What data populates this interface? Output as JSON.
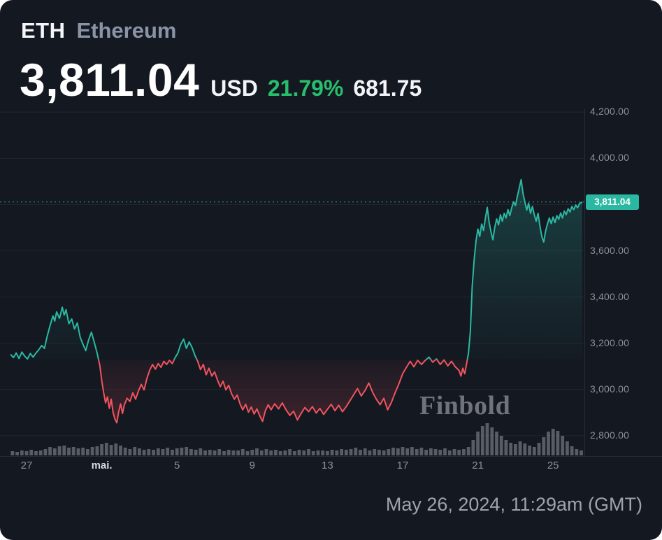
{
  "header": {
    "symbol": "ETH",
    "name": "Ethereum",
    "price": "3,811.04",
    "currency": "USD",
    "change_percent": "21.79%",
    "change_abs": "681.75"
  },
  "watermark": "Finbold",
  "footer": {
    "timestamp": "May 26, 2024, 11:29am (GMT)"
  },
  "colors": {
    "background": "#141821",
    "line_up_teal": "#2bb8a2",
    "line_down_red": "#f1545e",
    "change_green": "#27bf6b",
    "axis_text": "#8b909c",
    "tag_bg": "#2bb8a2",
    "volume_gray": "rgba(170,175,185,0.45)"
  },
  "chart_data": {
    "type": "line",
    "style": "baseline-area-with-volume-histogram",
    "title": "ETH/USD price, Apr 26 - May 26 2024",
    "current_price": 3811.04,
    "current_price_label": "3,811.04",
    "baseline_value": 3129.29,
    "period_change_percent": 21.79,
    "period_change_abs": 681.75,
    "ylim": [
      2712,
      4216
    ],
    "y_axis": {
      "gridlines": [
        4200,
        4000,
        3800,
        3600,
        3400,
        3200,
        3000,
        2800
      ],
      "ticks": [
        {
          "value": 4200,
          "label": "4,200.00"
        },
        {
          "value": 4000,
          "label": "4,000.00"
        },
        {
          "value": 3600,
          "label": "3,600.00"
        },
        {
          "value": 3400,
          "label": "3,400.00"
        },
        {
          "value": 3200,
          "label": "3,200.00"
        },
        {
          "value": 3000,
          "label": "3,000.00"
        },
        {
          "value": 2800,
          "label": "2,800.00"
        }
      ]
    },
    "x_axis": {
      "unit": "days since Apr 27 2024",
      "ticks": [
        {
          "day": 0,
          "label": "27",
          "major": false
        },
        {
          "day": 4,
          "label": "mai.",
          "major": true
        },
        {
          "day": 8,
          "label": "5",
          "major": false
        },
        {
          "day": 12,
          "label": "9",
          "major": false
        },
        {
          "day": 16,
          "label": "13",
          "major": false
        },
        {
          "day": 20,
          "label": "17",
          "major": false
        },
        {
          "day": 24,
          "label": "21",
          "major": false
        },
        {
          "day": 28,
          "label": "25",
          "major": false
        }
      ]
    },
    "prices": [
      [
        -0.85,
        3152
      ],
      [
        -0.7,
        3138
      ],
      [
        -0.55,
        3158
      ],
      [
        -0.4,
        3134
      ],
      [
        -0.25,
        3162
      ],
      [
        -0.1,
        3144
      ],
      [
        0.05,
        3132
      ],
      [
        0.2,
        3156
      ],
      [
        0.35,
        3140
      ],
      [
        0.5,
        3158
      ],
      [
        0.65,
        3172
      ],
      [
        0.8,
        3190
      ],
      [
        0.95,
        3178
      ],
      [
        1.1,
        3232
      ],
      [
        1.25,
        3276
      ],
      [
        1.4,
        3318
      ],
      [
        1.5,
        3296
      ],
      [
        1.6,
        3336
      ],
      [
        1.75,
        3308
      ],
      [
        1.9,
        3356
      ],
      [
        2,
        3322
      ],
      [
        2.1,
        3345
      ],
      [
        2.25,
        3285
      ],
      [
        2.4,
        3305
      ],
      [
        2.55,
        3262
      ],
      [
        2.7,
        3288
      ],
      [
        2.85,
        3226
      ],
      [
        3,
        3196
      ],
      [
        3.15,
        3168
      ],
      [
        3.3,
        3215
      ],
      [
        3.45,
        3248
      ],
      [
        3.6,
        3205
      ],
      [
        3.75,
        3158
      ],
      [
        3.9,
        3102
      ],
      [
        4,
        3038
      ],
      [
        4.1,
        2986
      ],
      [
        4.2,
        2942
      ],
      [
        4.3,
        2968
      ],
      [
        4.4,
        2918
      ],
      [
        4.5,
        2958
      ],
      [
        4.6,
        2902
      ],
      [
        4.7,
        2872
      ],
      [
        4.8,
        2856
      ],
      [
        4.9,
        2904
      ],
      [
        5,
        2938
      ],
      [
        5.1,
        2896
      ],
      [
        5.2,
        2934
      ],
      [
        5.35,
        2962
      ],
      [
        5.5,
        2948
      ],
      [
        5.65,
        2986
      ],
      [
        5.8,
        2958
      ],
      [
        5.95,
        2994
      ],
      [
        6.1,
        3022
      ],
      [
        6.25,
        2998
      ],
      [
        6.4,
        3048
      ],
      [
        6.55,
        3084
      ],
      [
        6.7,
        3108
      ],
      [
        6.85,
        3088
      ],
      [
        7,
        3112
      ],
      [
        7.15,
        3096
      ],
      [
        7.3,
        3122
      ],
      [
        7.45,
        3108
      ],
      [
        7.6,
        3126
      ],
      [
        7.75,
        3112
      ],
      [
        7.9,
        3138
      ],
      [
        8.05,
        3158
      ],
      [
        8.2,
        3196
      ],
      [
        8.35,
        3218
      ],
      [
        8.5,
        3178
      ],
      [
        8.65,
        3206
      ],
      [
        8.8,
        3182
      ],
      [
        8.95,
        3148
      ],
      [
        9.1,
        3122
      ],
      [
        9.25,
        3086
      ],
      [
        9.4,
        3108
      ],
      [
        9.55,
        3064
      ],
      [
        9.7,
        3092
      ],
      [
        9.85,
        3058
      ],
      [
        10,
        3076
      ],
      [
        10.15,
        3042
      ],
      [
        10.3,
        3012
      ],
      [
        10.45,
        3036
      ],
      [
        10.6,
        2998
      ],
      [
        10.75,
        3018
      ],
      [
        10.9,
        2982
      ],
      [
        11.05,
        2958
      ],
      [
        11.2,
        2976
      ],
      [
        11.35,
        2938
      ],
      [
        11.5,
        2912
      ],
      [
        11.65,
        2936
      ],
      [
        11.8,
        2902
      ],
      [
        11.95,
        2924
      ],
      [
        12.1,
        2894
      ],
      [
        12.25,
        2916
      ],
      [
        12.4,
        2886
      ],
      [
        12.55,
        2862
      ],
      [
        12.7,
        2908
      ],
      [
        12.85,
        2934
      ],
      [
        13,
        2912
      ],
      [
        13.2,
        2938
      ],
      [
        13.4,
        2916
      ],
      [
        13.6,
        2942
      ],
      [
        13.8,
        2912
      ],
      [
        14,
        2888
      ],
      [
        14.2,
        2906
      ],
      [
        14.4,
        2868
      ],
      [
        14.6,
        2896
      ],
      [
        14.8,
        2922
      ],
      [
        15,
        2904
      ],
      [
        15.2,
        2926
      ],
      [
        15.4,
        2898
      ],
      [
        15.6,
        2918
      ],
      [
        15.8,
        2892
      ],
      [
        16,
        2914
      ],
      [
        16.2,
        2936
      ],
      [
        16.4,
        2908
      ],
      [
        16.6,
        2932
      ],
      [
        16.8,
        2904
      ],
      [
        17,
        2926
      ],
      [
        17.2,
        2952
      ],
      [
        17.4,
        2978
      ],
      [
        17.6,
        3004
      ],
      [
        17.8,
        2972
      ],
      [
        18,
        2996
      ],
      [
        18.2,
        3028
      ],
      [
        18.4,
        2988
      ],
      [
        18.6,
        2958
      ],
      [
        18.8,
        2934
      ],
      [
        19,
        2962
      ],
      [
        19.2,
        2912
      ],
      [
        19.4,
        2944
      ],
      [
        19.6,
        2986
      ],
      [
        19.8,
        3024
      ],
      [
        20,
        3068
      ],
      [
        20.2,
        3096
      ],
      [
        20.4,
        3122
      ],
      [
        20.6,
        3098
      ],
      [
        20.8,
        3126
      ],
      [
        21,
        3108
      ],
      [
        21.2,
        3126
      ],
      [
        21.4,
        3140
      ],
      [
        21.6,
        3118
      ],
      [
        21.8,
        3132
      ],
      [
        22,
        3108
      ],
      [
        22.2,
        3128
      ],
      [
        22.4,
        3102
      ],
      [
        22.6,
        3122
      ],
      [
        22.8,
        3098
      ],
      [
        23,
        3082
      ],
      [
        23.1,
        3058
      ],
      [
        23.2,
        3092
      ],
      [
        23.3,
        3068
      ],
      [
        23.4,
        3112
      ],
      [
        23.5,
        3156
      ],
      [
        23.6,
        3248
      ],
      [
        23.7,
        3446
      ],
      [
        23.8,
        3558
      ],
      [
        23.9,
        3642
      ],
      [
        24,
        3694
      ],
      [
        24.1,
        3662
      ],
      [
        24.2,
        3716
      ],
      [
        24.3,
        3688
      ],
      [
        24.4,
        3742
      ],
      [
        24.5,
        3788
      ],
      [
        24.6,
        3724
      ],
      [
        24.7,
        3682
      ],
      [
        24.8,
        3648
      ],
      [
        24.9,
        3702
      ],
      [
        25,
        3738
      ],
      [
        25.1,
        3712
      ],
      [
        25.2,
        3756
      ],
      [
        25.3,
        3728
      ],
      [
        25.4,
        3762
      ],
      [
        25.5,
        3742
      ],
      [
        25.6,
        3778
      ],
      [
        25.7,
        3752
      ],
      [
        25.8,
        3786
      ],
      [
        25.9,
        3812
      ],
      [
        26,
        3796
      ],
      [
        26.1,
        3836
      ],
      [
        26.2,
        3872
      ],
      [
        26.3,
        3908
      ],
      [
        26.4,
        3848
      ],
      [
        26.5,
        3812
      ],
      [
        26.6,
        3776
      ],
      [
        26.7,
        3806
      ],
      [
        26.8,
        3762
      ],
      [
        26.9,
        3792
      ],
      [
        27,
        3756
      ],
      [
        27.1,
        3728
      ],
      [
        27.2,
        3762
      ],
      [
        27.3,
        3706
      ],
      [
        27.4,
        3662
      ],
      [
        27.5,
        3638
      ],
      [
        27.6,
        3684
      ],
      [
        27.7,
        3716
      ],
      [
        27.8,
        3742
      ],
      [
        27.9,
        3718
      ],
      [
        28,
        3746
      ],
      [
        28.1,
        3722
      ],
      [
        28.2,
        3752
      ],
      [
        28.3,
        3736
      ],
      [
        28.4,
        3764
      ],
      [
        28.5,
        3742
      ],
      [
        28.6,
        3772
      ],
      [
        28.7,
        3756
      ],
      [
        28.8,
        3782
      ],
      [
        28.9,
        3768
      ],
      [
        29,
        3792
      ],
      [
        29.1,
        3778
      ],
      [
        29.2,
        3798
      ],
      [
        29.3,
        3786
      ],
      [
        29.4,
        3804
      ],
      [
        29.55,
        3811
      ]
    ],
    "volumes": [
      [
        -0.75,
        6
      ],
      [
        -0.5,
        5
      ],
      [
        -0.25,
        7
      ],
      [
        0,
        6
      ],
      [
        0.25,
        8
      ],
      [
        0.5,
        6
      ],
      [
        0.75,
        7
      ],
      [
        1,
        9
      ],
      [
        1.25,
        12
      ],
      [
        1.5,
        10
      ],
      [
        1.75,
        13
      ],
      [
        2,
        14
      ],
      [
        2.25,
        11
      ],
      [
        2.5,
        12
      ],
      [
        2.75,
        10
      ],
      [
        3,
        11
      ],
      [
        3.25,
        9
      ],
      [
        3.5,
        12
      ],
      [
        3.75,
        13
      ],
      [
        4,
        16
      ],
      [
        4.25,
        18
      ],
      [
        4.5,
        15
      ],
      [
        4.75,
        17
      ],
      [
        5,
        14
      ],
      [
        5.25,
        11
      ],
      [
        5.5,
        9
      ],
      [
        5.75,
        12
      ],
      [
        6,
        10
      ],
      [
        6.25,
        8
      ],
      [
        6.5,
        9
      ],
      [
        6.75,
        8
      ],
      [
        7,
        10
      ],
      [
        7.25,
        9
      ],
      [
        7.5,
        11
      ],
      [
        7.75,
        8
      ],
      [
        8,
        10
      ],
      [
        8.25,
        11
      ],
      [
        8.5,
        12
      ],
      [
        8.75,
        9
      ],
      [
        9,
        8
      ],
      [
        9.25,
        10
      ],
      [
        9.5,
        7
      ],
      [
        9.75,
        8
      ],
      [
        10,
        7
      ],
      [
        10.25,
        9
      ],
      [
        10.5,
        6
      ],
      [
        10.75,
        8
      ],
      [
        11,
        7
      ],
      [
        11.25,
        7
      ],
      [
        11.5,
        9
      ],
      [
        11.75,
        6
      ],
      [
        12,
        8
      ],
      [
        12.25,
        10
      ],
      [
        12.5,
        7
      ],
      [
        12.75,
        9
      ],
      [
        13,
        7
      ],
      [
        13.25,
        8
      ],
      [
        13.5,
        6
      ],
      [
        13.75,
        7
      ],
      [
        14,
        9
      ],
      [
        14.25,
        6
      ],
      [
        14.5,
        8
      ],
      [
        14.75,
        7
      ],
      [
        15,
        9
      ],
      [
        15.25,
        6
      ],
      [
        15.5,
        7
      ],
      [
        15.75,
        7
      ],
      [
        16,
        6
      ],
      [
        16.25,
        8
      ],
      [
        16.5,
        7
      ],
      [
        16.75,
        9
      ],
      [
        17,
        8
      ],
      [
        17.25,
        9
      ],
      [
        17.5,
        11
      ],
      [
        17.75,
        8
      ],
      [
        18,
        10
      ],
      [
        18.25,
        7
      ],
      [
        18.5,
        9
      ],
      [
        18.75,
        8
      ],
      [
        19,
        7
      ],
      [
        19.25,
        9
      ],
      [
        19.5,
        11
      ],
      [
        19.75,
        10
      ],
      [
        20,
        12
      ],
      [
        20.25,
        10
      ],
      [
        20.5,
        12
      ],
      [
        20.75,
        9
      ],
      [
        21,
        11
      ],
      [
        21.25,
        8
      ],
      [
        21.5,
        10
      ],
      [
        21.75,
        9
      ],
      [
        22,
        8
      ],
      [
        22.25,
        10
      ],
      [
        22.5,
        7
      ],
      [
        22.75,
        9
      ],
      [
        23,
        8
      ],
      [
        23.25,
        9
      ],
      [
        23.5,
        12
      ],
      [
        23.75,
        22
      ],
      [
        24,
        34
      ],
      [
        24.25,
        42
      ],
      [
        24.5,
        46
      ],
      [
        24.75,
        40
      ],
      [
        25,
        34
      ],
      [
        25.25,
        28
      ],
      [
        25.5,
        22
      ],
      [
        25.75,
        18
      ],
      [
        26,
        16
      ],
      [
        26.25,
        20
      ],
      [
        26.5,
        17
      ],
      [
        26.75,
        14
      ],
      [
        27,
        12
      ],
      [
        27.25,
        18
      ],
      [
        27.5,
        26
      ],
      [
        27.75,
        34
      ],
      [
        28,
        38
      ],
      [
        28.25,
        35
      ],
      [
        28.5,
        28
      ],
      [
        28.75,
        20
      ],
      [
        29,
        13
      ],
      [
        29.25,
        9
      ],
      [
        29.5,
        7
      ]
    ]
  }
}
